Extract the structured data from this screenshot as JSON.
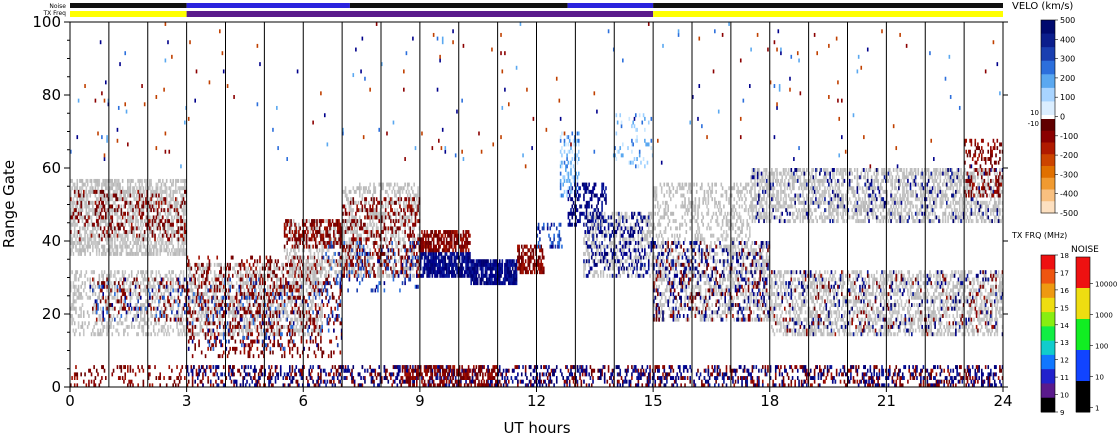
{
  "chart_data": {
    "type": "scatter",
    "subtype": "radar range-time plot (SuperDARN style)",
    "xlabel": "UT hours",
    "ylabel": "Range Gate",
    "xlim": [
      0,
      24
    ],
    "ylim": [
      0,
      100
    ],
    "x_ticks": [
      0,
      3,
      6,
      9,
      12,
      15,
      18,
      21,
      24
    ],
    "y_ticks": [
      0,
      20,
      40,
      60,
      80,
      100
    ],
    "vertical_grid_hours": [
      1,
      2,
      3,
      4,
      5,
      6,
      7,
      8,
      9,
      10,
      11,
      12,
      13,
      14,
      15,
      16,
      17,
      18,
      19,
      20,
      21,
      22,
      23
    ],
    "grid": "vertical lines every hour",
    "top_strips": {
      "noise_label": "Noise",
      "txfreq_label": "TX Freq",
      "noise_segments": [
        {
          "from": 0,
          "to": 3,
          "color": "#111111"
        },
        {
          "from": 3,
          "to": 7.2,
          "color": "#2a22dd"
        },
        {
          "from": 7.2,
          "to": 12.8,
          "color": "#111111"
        },
        {
          "from": 12.8,
          "to": 15,
          "color": "#2a22dd"
        },
        {
          "from": 15,
          "to": 24,
          "color": "#111111"
        }
      ],
      "txfreq_segments": [
        {
          "from": 0,
          "to": 3,
          "color": "#ffff00"
        },
        {
          "from": 3,
          "to": 15,
          "color": "#5a1a8c"
        },
        {
          "from": 15,
          "to": 24,
          "color": "#ffff00"
        }
      ]
    },
    "velocity_colorbar": {
      "title": "VELO (km/s)",
      "labels": [
        "500",
        "400",
        "300",
        "200",
        "100",
        "0",
        "-100",
        "-200",
        "-300",
        "-400",
        "-500"
      ],
      "small_labels": [
        "10",
        "-10"
      ],
      "positive_colors": [
        "#dbeeff",
        "#a8d4ff",
        "#5aa8f0",
        "#2c6fdc",
        "#1a3fb0",
        "#0b1e8c",
        "#000a6e"
      ],
      "negative_colors": [
        "#600000",
        "#8a0000",
        "#b01a00",
        "#cc4400",
        "#e07000",
        "#f09a30",
        "#f8c080",
        "#fde0c0"
      ]
    },
    "txfreq_colorbar": {
      "title": "TX FRQ (MHz)",
      "labels": [
        "18",
        "17",
        "16",
        "15",
        "14",
        "13",
        "12",
        "11",
        "10",
        "9"
      ],
      "colors": [
        "#ee1111",
        "#ee5511",
        "#ee9911",
        "#eedd11",
        "#88ee11",
        "#11ee44",
        "#11cccc",
        "#1177ff",
        "#2222cc",
        "#5a1a8c",
        "#000000"
      ]
    },
    "noise_colorbar": {
      "title": "NOISE",
      "labels": [
        "10000",
        "1000",
        "100",
        "10",
        "1"
      ],
      "colors": [
        "#ee1111",
        "#eedd11",
        "#11ee22",
        "#1144ff",
        "#000000"
      ]
    },
    "legend_colors": {
      "ground_scatter": "#c0c0c0"
    },
    "series": [
      {
        "regions": [
          {
            "x": [
              0,
              3
            ],
            "y": [
              36,
              57
            ],
            "c": "gs",
            "d": 0.55
          },
          {
            "x": [
              0,
              3
            ],
            "y": [
              40,
              54
            ],
            "c": "red",
            "d": 0.18
          },
          {
            "x": [
              0,
              3
            ],
            "y": [
              14,
              32
            ],
            "c": "gs",
            "d": 0.35
          },
          {
            "x": [
              0.5,
              3
            ],
            "y": [
              18,
              30
            ],
            "c": "red",
            "d": 0.12
          },
          {
            "x": [
              0.5,
              3
            ],
            "y": [
              18,
              30
            ],
            "c": "blue",
            "d": 0.08
          },
          {
            "x": [
              3,
              6.5
            ],
            "y": [
              14,
              34
            ],
            "c": "gs",
            "d": 0.45
          },
          {
            "x": [
              3,
              7
            ],
            "y": [
              8,
              36
            ],
            "c": "red",
            "d": 0.2
          },
          {
            "x": [
              3,
              7
            ],
            "y": [
              10,
              30
            ],
            "c": "blue",
            "d": 0.06
          },
          {
            "x": [
              5.5,
              7.5
            ],
            "y": [
              30,
              46
            ],
            "c": "gs",
            "d": 0.3
          },
          {
            "x": [
              5.5,
              7
            ],
            "y": [
              38,
              46
            ],
            "c": "red",
            "d": 0.45
          },
          {
            "x": [
              7,
              9
            ],
            "y": [
              30,
              56
            ],
            "c": "gs",
            "d": 0.35
          },
          {
            "x": [
              7,
              9
            ],
            "y": [
              30,
              52
            ],
            "c": "red",
            "d": 0.25
          },
          {
            "x": [
              6.5,
              9
            ],
            "y": [
              26,
              40
            ],
            "c": "blue",
            "d": 0.1
          },
          {
            "x": [
              9,
              10.3
            ],
            "y": [
              30,
              37
            ],
            "c": "navy",
            "d": 0.8
          },
          {
            "x": [
              9,
              10.3
            ],
            "y": [
              37,
              43
            ],
            "c": "red",
            "d": 0.7
          },
          {
            "x": [
              10.3,
              11.5
            ],
            "y": [
              28,
              35
            ],
            "c": "navy",
            "d": 0.85
          },
          {
            "x": [
              11.5,
              12.2
            ],
            "y": [
              31,
              39
            ],
            "c": "red",
            "d": 0.6
          },
          {
            "x": [
              12,
              12.7
            ],
            "y": [
              38,
              45
            ],
            "c": "blue",
            "d": 0.25
          },
          {
            "x": [
              12.6,
              13.1
            ],
            "y": [
              52,
              70
            ],
            "c": "ltblue",
            "d": 0.35
          },
          {
            "x": [
              12.8,
              13.8
            ],
            "y": [
              44,
              56
            ],
            "c": "navy",
            "d": 0.4
          },
          {
            "x": [
              13.2,
              15
            ],
            "y": [
              30,
              48
            ],
            "c": "gs",
            "d": 0.35
          },
          {
            "x": [
              13.2,
              15
            ],
            "y": [
              30,
              48
            ],
            "c": "navy",
            "d": 0.2
          },
          {
            "x": [
              14,
              15
            ],
            "y": [
              60,
              75
            ],
            "c": "ltblue",
            "d": 0.12
          },
          {
            "x": [
              15,
              17.5
            ],
            "y": [
              40,
              56
            ],
            "c": "gs",
            "d": 0.3
          },
          {
            "x": [
              15,
              18
            ],
            "y": [
              18,
              40
            ],
            "c": "gs",
            "d": 0.35
          },
          {
            "x": [
              15,
              18
            ],
            "y": [
              18,
              40
            ],
            "c": "navy",
            "d": 0.15
          },
          {
            "x": [
              15,
              18
            ],
            "y": [
              18,
              40
            ],
            "c": "red",
            "d": 0.07
          },
          {
            "x": [
              17.5,
              24
            ],
            "y": [
              45,
              60
            ],
            "c": "gs",
            "d": 0.5
          },
          {
            "x": [
              17.5,
              24
            ],
            "y": [
              45,
              60
            ],
            "c": "navy",
            "d": 0.07
          },
          {
            "x": [
              18,
              24
            ],
            "y": [
              14,
              32
            ],
            "c": "gs",
            "d": 0.45
          },
          {
            "x": [
              18,
              24
            ],
            "y": [
              14,
              32
            ],
            "c": "navy",
            "d": 0.06
          },
          {
            "x": [
              18,
              24
            ],
            "y": [
              14,
              32
            ],
            "c": "red",
            "d": 0.04
          },
          {
            "x": [
              23,
              24
            ],
            "y": [
              52,
              68
            ],
            "c": "red",
            "d": 0.25
          },
          {
            "x": [
              0,
              24
            ],
            "y": [
              0,
              6
            ],
            "c": "red",
            "d": 0.2
          },
          {
            "x": [
              3,
              24
            ],
            "y": [
              0,
              6
            ],
            "c": "navy",
            "d": 0.2
          },
          {
            "x": [
              8.5,
              11
            ],
            "y": [
              0,
              6
            ],
            "c": "red",
            "d": 0.4
          },
          {
            "x": [
              0,
              24
            ],
            "y": [
              60,
              100
            ],
            "c": "sparse",
            "d": 0.008
          }
        ]
      }
    ]
  }
}
